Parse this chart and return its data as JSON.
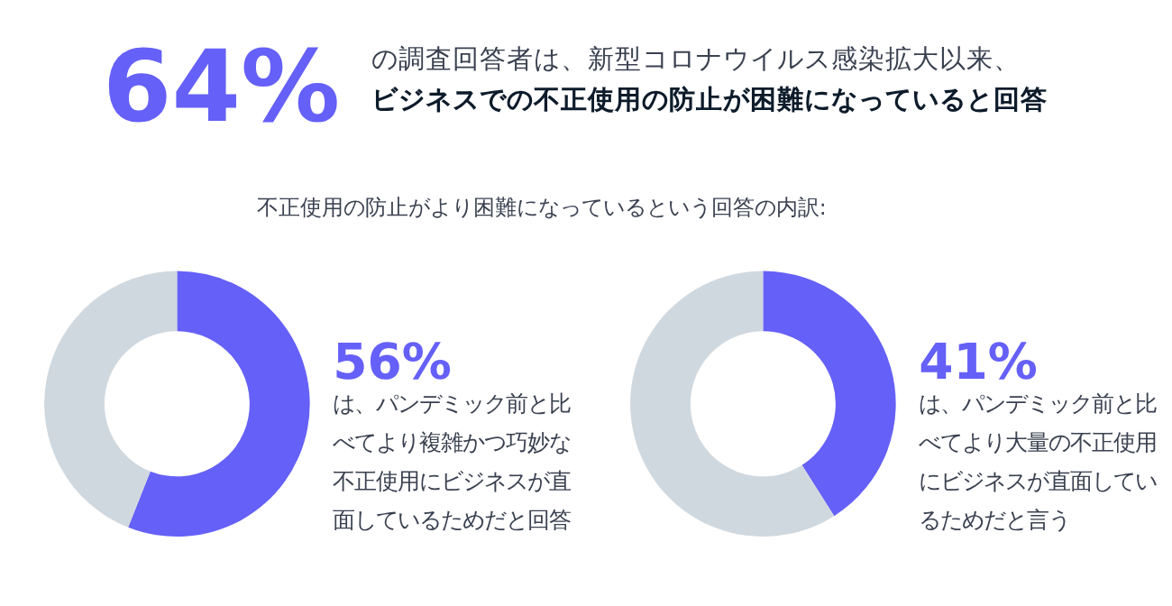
{
  "chart_data": [
    {
      "type": "other",
      "title": "64%",
      "subtitle": "の調査回答者は、新型コロナウイルス感染拡大以来、",
      "color": "#6560f7",
      "annotations": [
        "ビジネスでの不正使用の防止が困難になっていると回答",
        "不正使用の防止がより困難になっているという回答の内訳:"
      ]
    },
    {
      "type": "donut",
      "categories": [
        null,
        null
      ],
      "values": [
        56,
        44
      ],
      "colors": [
        "#6560f7",
        "#d0d8df"
      ],
      "value_labels": [
        "56%",
        null
      ],
      "legend": false,
      "annotations": [
        "は、パンデミック前と比",
        "べてより複雑かつ巧妙な",
        "不正使用にビジネスが直",
        "面しているためだと回答"
      ]
    },
    {
      "type": "donut",
      "categories": [
        null,
        null
      ],
      "values": [
        41,
        59
      ],
      "colors": [
        "#6560f7",
        "#d0d8df"
      ],
      "value_labels": [
        "41%",
        null
      ],
      "legend": false,
      "annotations": [
        "は、パンデミック前と比",
        "べてより大量の不正使用",
        "にビジネスが直面してい",
        "るためだと言う"
      ]
    }
  ]
}
